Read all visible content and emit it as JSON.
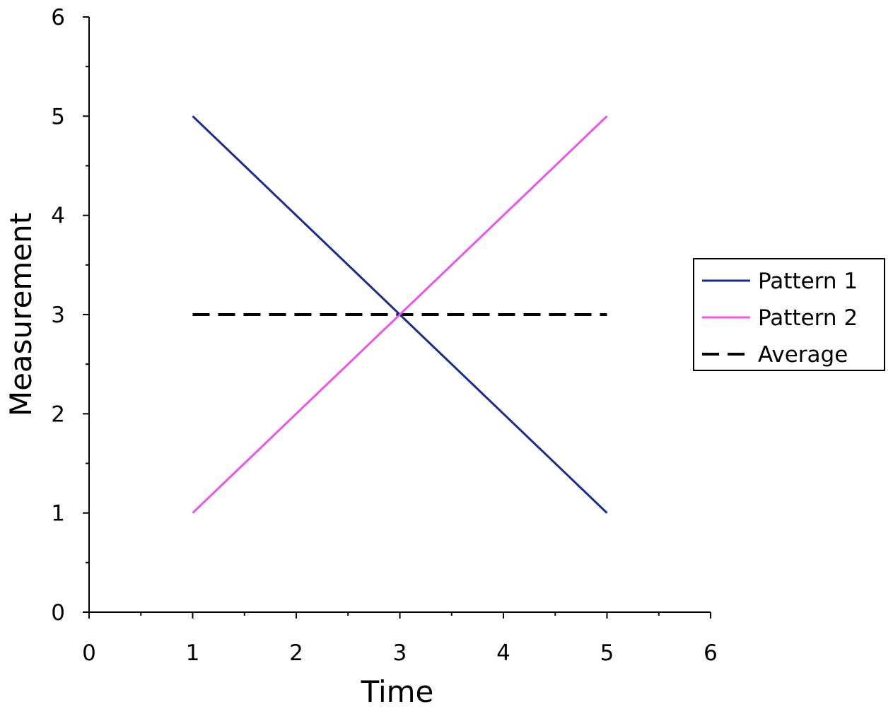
{
  "chart_data": {
    "type": "line",
    "title": "",
    "xlabel": "Time",
    "ylabel": "Measurement",
    "xlim": [
      0,
      6
    ],
    "ylim": [
      0,
      6
    ],
    "x_ticks": [
      "0",
      "1",
      "2",
      "3",
      "4",
      "5",
      "6"
    ],
    "y_ticks": [
      "0",
      "1",
      "2",
      "3",
      "4",
      "5",
      "6"
    ],
    "minor_ticks": true,
    "grid": false,
    "legend_position": "right",
    "series": [
      {
        "name": "Pattern 1",
        "color": "#1a2b8c",
        "style": "solid",
        "x": [
          1,
          5
        ],
        "y": [
          5,
          1
        ]
      },
      {
        "name": "Pattern 2",
        "color": "#e855e8",
        "style": "solid",
        "x": [
          1,
          5
        ],
        "y": [
          1,
          5
        ]
      },
      {
        "name": "Average",
        "color": "#000000",
        "style": "dashed",
        "x": [
          1,
          5
        ],
        "y": [
          3,
          3
        ]
      }
    ]
  }
}
